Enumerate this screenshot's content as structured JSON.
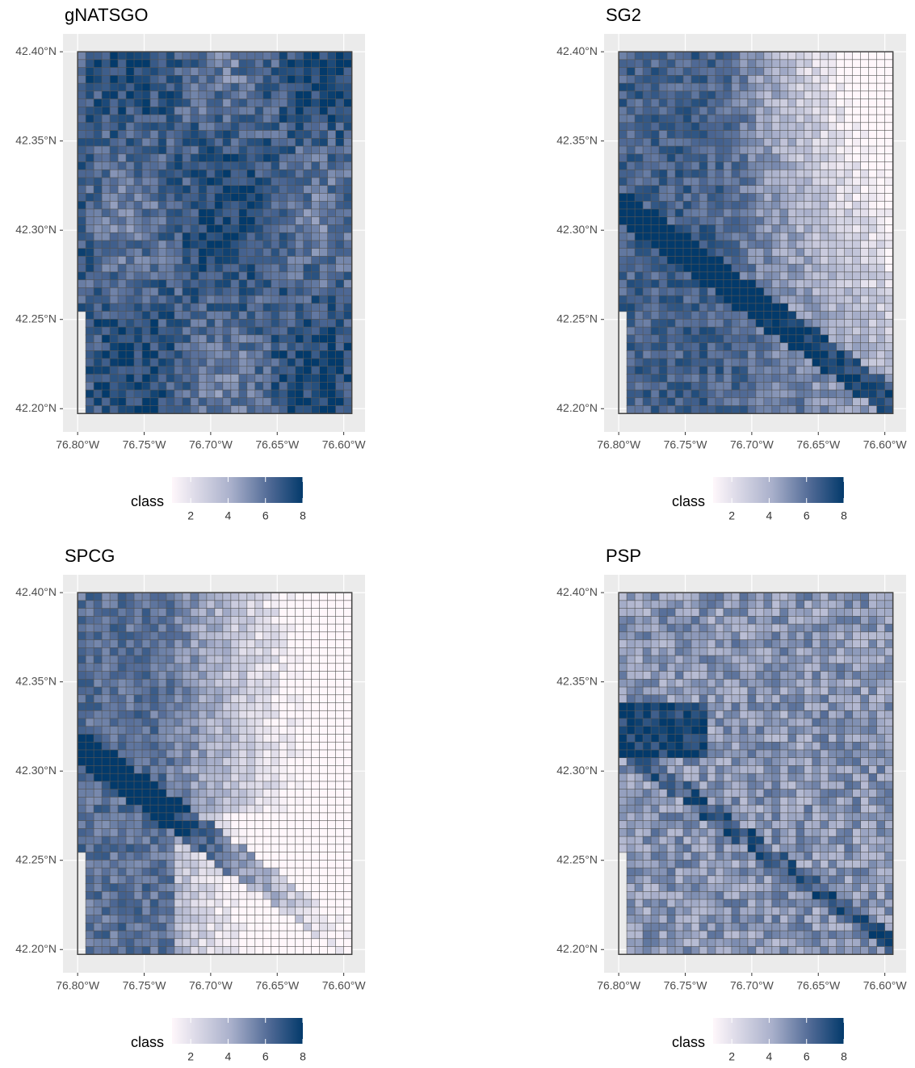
{
  "panels": [
    {
      "title": "gNATSGO"
    },
    {
      "title": "SG2"
    },
    {
      "title": "SPCG"
    },
    {
      "title": "PSP"
    }
  ],
  "map": {
    "xlim": [
      -76.811,
      -76.584
    ],
    "ylim": [
      42.187,
      42.41
    ],
    "xticks": [
      {
        "value": -76.8,
        "label": "76.80°W"
      },
      {
        "value": -76.75,
        "label": "76.75°W"
      },
      {
        "value": -76.7,
        "label": "76.70°W"
      },
      {
        "value": -76.65,
        "label": "76.65°W"
      },
      {
        "value": -76.6,
        "label": "76.60°W"
      }
    ],
    "yticks": [
      {
        "value": 42.2,
        "label": "42.20°N"
      },
      {
        "value": 42.25,
        "label": "42.25°N"
      },
      {
        "value": 42.3,
        "label": "42.30°N"
      },
      {
        "value": 42.35,
        "label": "42.35°N"
      },
      {
        "value": 42.4,
        "label": "42.40°N"
      }
    ]
  },
  "legend": {
    "title": "class",
    "limits": [
      1,
      8
    ],
    "ticks": [
      2,
      4,
      6,
      8
    ]
  }
}
